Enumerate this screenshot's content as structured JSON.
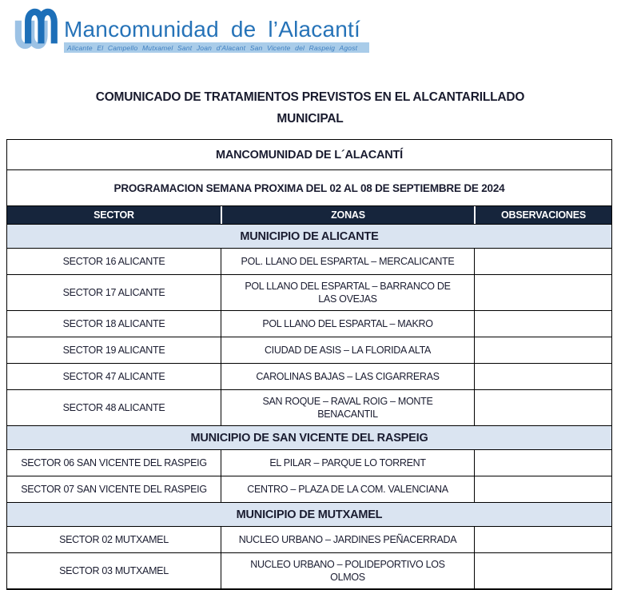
{
  "brand": {
    "name": "Mancomunidad de l’Alacantí",
    "tagline": "Alicante El Campello Mutxamel Sant Joan d'Alacant San Vicente del Raspeig Agost",
    "colors": {
      "blue": "#2673b8",
      "light_blue": "#9cc2e5",
      "band": "#a9cce9"
    }
  },
  "doc_title": "COMUNICADO DE TRATAMIENTOS PREVISTOS EN EL ALCANTARILLADO\nMUNICIPAL",
  "table": {
    "header_title": "MANCOMUNIDAD DE L´ALACANTÍ",
    "subtitle": "PROGRAMACION SEMANA PROXIMA DEL 02 AL 08 DE SEPTIEMBRE DE 2024",
    "columns": [
      "SECTOR",
      "ZONAS",
      "OBSERVACIONES"
    ],
    "header_bg": "#16253c",
    "section_bg": "#dae4f1",
    "rows": [
      {
        "type": "section",
        "label": "MUNICIPIO DE ALICANTE"
      },
      {
        "type": "data",
        "sector": "SECTOR 16 ALICANTE",
        "zona": "POL. LLANO DEL ESPARTAL – MERCALICANTE",
        "obs": ""
      },
      {
        "type": "data",
        "sector": "SECTOR 17 ALICANTE",
        "zona": "POL LLANO DEL ESPARTAL – BARRANCO DE\nLAS OVEJAS",
        "obs": ""
      },
      {
        "type": "data",
        "sector": "SECTOR 18 ALICANTE",
        "zona": "POL LLANO DEL ESPARTAL – MAKRO",
        "obs": ""
      },
      {
        "type": "data",
        "sector": "SECTOR 19 ALICANTE",
        "zona": "CIUDAD DE ASIS – LA FLORIDA ALTA",
        "obs": ""
      },
      {
        "type": "data",
        "sector": "SECTOR 47 ALICANTE",
        "zona": "CAROLINAS BAJAS – LAS CIGARRERAS",
        "obs": ""
      },
      {
        "type": "data",
        "sector": "SECTOR 48 ALICANTE",
        "zona": "SAN ROQUE – RAVAL ROIG – MONTE\nBENACANTIL",
        "obs": ""
      },
      {
        "type": "section",
        "label": "MUNICIPIO DE SAN VICENTE DEL RASPEIG"
      },
      {
        "type": "data",
        "sector": "SECTOR 06 SAN VICENTE DEL RASPEIG",
        "zona": "EL PILAR – PARQUE LO TORRENT",
        "obs": ""
      },
      {
        "type": "data",
        "sector": "SECTOR 07 SAN VICENTE DEL RASPEIG",
        "zona": "CENTRO – PLAZA DE LA COM. VALENCIANA",
        "obs": ""
      },
      {
        "type": "section",
        "label": "MUNICIPIO DE MUTXAMEL"
      },
      {
        "type": "data",
        "sector": "SECTOR 02 MUTXAMEL",
        "zona": "NUCLEO URBANO – JARDINES PEÑACERRADA",
        "obs": ""
      },
      {
        "type": "data",
        "sector": "SECTOR 03 MUTXAMEL",
        "zona": "NUCLEO URBANO – POLIDEPORTIVO LOS\nOLMOS",
        "obs": ""
      }
    ]
  }
}
